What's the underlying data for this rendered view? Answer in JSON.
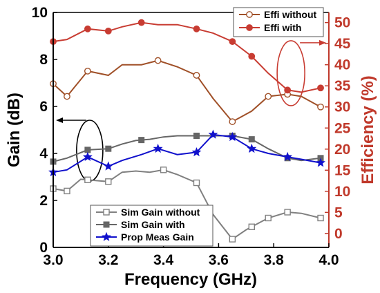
{
  "chart_data": {
    "type": "line",
    "xlabel": "Frequency (GHz)",
    "ylabel_left": "Gain (dB)",
    "ylabel_right": "Efficiency (%)",
    "xlim": [
      3.0,
      4.0
    ],
    "ylim_left": [
      0,
      10
    ],
    "ylim_right": [
      -3.3,
      52.4
    ],
    "x_ticks": [
      "3.0",
      "3.2",
      "3.4",
      "3.6",
      "3.8",
      "4.0"
    ],
    "left_ticks": [
      "0",
      "2",
      "4",
      "6",
      "8",
      "10"
    ],
    "right_ticks": [
      "0",
      "5",
      "10",
      "15",
      "20",
      "25",
      "30",
      "35",
      "40",
      "45",
      "50"
    ],
    "grid": false,
    "series": [
      {
        "name": "Sim Gain without",
        "axis": "left",
        "color": "#808080",
        "marker": "open-square",
        "x": [
          3.0,
          3.05,
          3.1,
          3.15,
          3.2,
          3.25,
          3.3,
          3.35,
          3.4,
          3.45,
          3.52,
          3.58,
          3.65,
          3.7,
          3.78,
          3.85,
          3.9,
          3.97
        ],
        "y": [
          2.5,
          2.4,
          2.9,
          2.85,
          2.8,
          3.2,
          3.25,
          3.2,
          3.3,
          3.1,
          2.75,
          1.4,
          0.35,
          0.75,
          1.25,
          1.5,
          1.45,
          1.25
        ],
        "marker_x": [
          3.0,
          3.05,
          3.125,
          3.2,
          3.4,
          3.52,
          3.65,
          3.72,
          3.78,
          3.85,
          3.97
        ]
      },
      {
        "name": "Sim Gain with",
        "axis": "left",
        "color": "#666666",
        "marker": "filled-square",
        "x": [
          3.0,
          3.05,
          3.125,
          3.2,
          3.25,
          3.3,
          3.35,
          3.4,
          3.45,
          3.52,
          3.58,
          3.65,
          3.72,
          3.78,
          3.85,
          3.9,
          3.97
        ],
        "y": [
          3.65,
          3.8,
          4.15,
          4.2,
          4.4,
          4.55,
          4.6,
          4.7,
          4.75,
          4.75,
          4.75,
          4.75,
          4.6,
          4.2,
          3.8,
          3.7,
          3.8
        ],
        "marker_x": [
          3.0,
          3.125,
          3.2,
          3.32,
          3.52,
          3.65,
          3.72,
          3.85,
          3.97
        ]
      },
      {
        "name": "Prop Meas Gain",
        "axis": "left",
        "color": "#1010cc",
        "marker": "star",
        "x": [
          3.0,
          3.05,
          3.125,
          3.2,
          3.25,
          3.32,
          3.38,
          3.45,
          3.52,
          3.58,
          3.65,
          3.72,
          3.78,
          3.85,
          3.9,
          3.97
        ],
        "y": [
          3.2,
          3.3,
          3.85,
          3.45,
          3.7,
          3.95,
          4.2,
          3.95,
          4.05,
          4.8,
          4.7,
          4.2,
          4.0,
          3.85,
          3.75,
          3.6
        ],
        "marker_x": [
          3.0,
          3.125,
          3.2,
          3.38,
          3.52,
          3.58,
          3.65,
          3.72,
          3.85,
          3.97
        ]
      },
      {
        "name": "Effi without",
        "axis": "right",
        "color": "#a05028",
        "marker": "open-circle",
        "x": [
          3.0,
          3.05,
          3.125,
          3.2,
          3.25,
          3.32,
          3.38,
          3.45,
          3.52,
          3.58,
          3.65,
          3.72,
          3.78,
          3.85,
          3.9,
          3.97
        ],
        "y": [
          35.5,
          32.5,
          38.5,
          37.5,
          40,
          40,
          41,
          39.5,
          37.5,
          32,
          26.5,
          29,
          32.5,
          33,
          32.5,
          30
        ],
        "marker_x": [
          3.0,
          3.05,
          3.125,
          3.38,
          3.52,
          3.65,
          3.78,
          3.85,
          3.97
        ]
      },
      {
        "name": "Effi with",
        "axis": "right",
        "color": "#c83c32",
        "marker": "filled-circle",
        "x": [
          3.0,
          3.05,
          3.125,
          3.2,
          3.25,
          3.32,
          3.38,
          3.45,
          3.52,
          3.58,
          3.65,
          3.72,
          3.78,
          3.85,
          3.9,
          3.97
        ],
        "y": [
          45.5,
          46,
          48.5,
          48,
          49,
          50,
          49.5,
          49.5,
          48.5,
          47.5,
          45.5,
          42,
          38,
          34,
          33.5,
          34.5
        ],
        "marker_x": [
          3.0,
          3.125,
          3.2,
          3.32,
          3.52,
          3.65,
          3.72,
          3.85,
          3.97
        ]
      }
    ],
    "legends": [
      {
        "position": "top-right",
        "entries": [
          "Effi without",
          "Effi with"
        ]
      },
      {
        "position": "bottom-center",
        "entries": [
          "Sim Gain without",
          "Sim Gain with",
          "Prop Meas Gain"
        ]
      }
    ],
    "annotations": [
      {
        "shape": "ellipse",
        "color": "#000000",
        "around_x": 3.13,
        "around_y_left": 4.0,
        "arrow_to": "left-axis"
      },
      {
        "shape": "ellipse",
        "color": "#c83c32",
        "around_x": 3.87,
        "around_y_right": 38,
        "arrow_to": "right-axis"
      }
    ]
  }
}
